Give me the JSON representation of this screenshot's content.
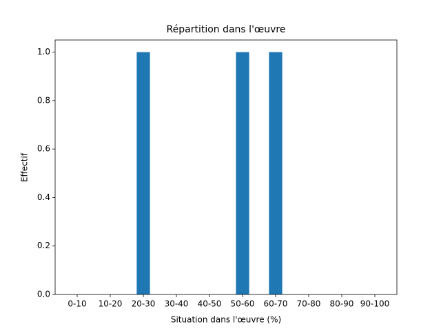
{
  "chart_data": {
    "type": "bar",
    "title": "Répartition dans l'œuvre",
    "x_label": "Situation dans l'œuvre (%)",
    "y_label": "Effectif",
    "categories": [
      "0-10",
      "10-20",
      "20-30",
      "30-40",
      "40-50",
      "50-60",
      "60-70",
      "70-80",
      "80-90",
      "90-100"
    ],
    "values": [
      0,
      0,
      1,
      0,
      0,
      1,
      1,
      0,
      0,
      0
    ],
    "color": "#1f77b4",
    "ylim": [
      0,
      1.05
    ],
    "yticks": [
      {
        "value": 0,
        "label": "0.0"
      },
      0.2,
      0.4,
      0.6,
      0.8,
      {
        "value": 1,
        "label": "1.0"
      }
    ],
    "grid": false
  }
}
